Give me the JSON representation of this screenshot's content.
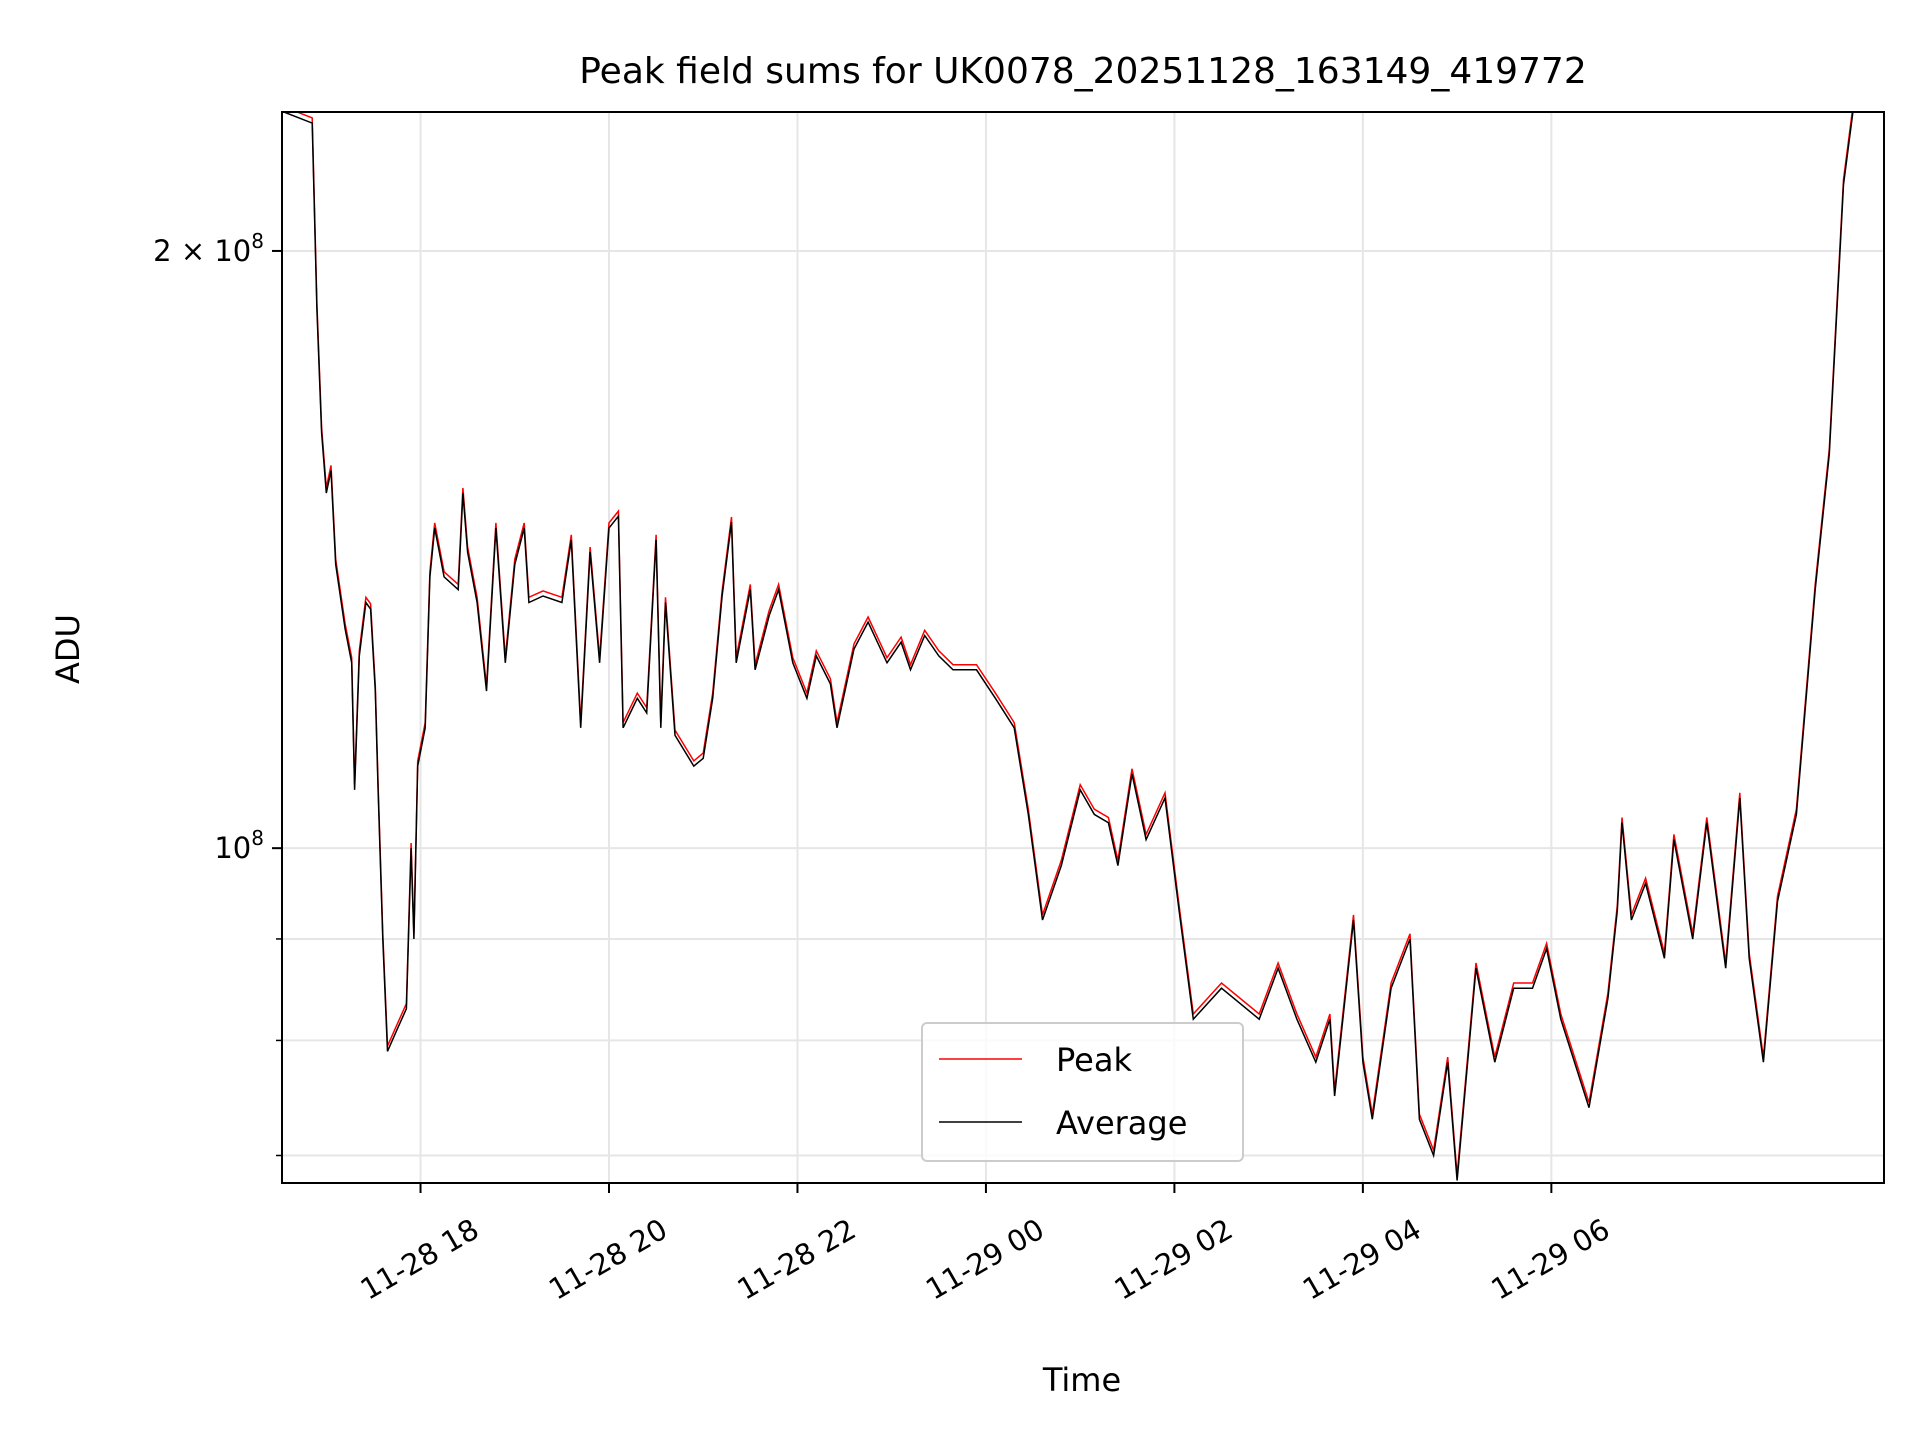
{
  "chart_data": {
    "type": "line",
    "title": "Peak field sums for UK0078_20251128_163149_419772",
    "xlabel": "Time",
    "ylabel": "ADU",
    "yscale": "log",
    "x_unit": "hours since 11-28 00:00",
    "xlim": [
      16.53,
      33.53
    ],
    "ylim": [
      67800000,
      235000000
    ],
    "grid": true,
    "legend_position": "lower-center",
    "x_ticks": [
      {
        "value": 18,
        "label": "11-28 18"
      },
      {
        "value": 20,
        "label": "11-28 20"
      },
      {
        "value": 22,
        "label": "11-28 22"
      },
      {
        "value": 24,
        "label": "11-29 00"
      },
      {
        "value": 26,
        "label": "11-29 02"
      },
      {
        "value": 28,
        "label": "11-29 04"
      },
      {
        "value": 30,
        "label": "11-29 06"
      }
    ],
    "y_major_ticks": [
      {
        "value": 200000000,
        "base": "2 × 10",
        "exp": "8"
      },
      {
        "value": 100000000,
        "base": "10",
        "exp": "8"
      }
    ],
    "y_minor_ticks": [
      70000000,
      80000000,
      90000000
    ],
    "series": [
      {
        "name": "Peak",
        "color": "#ff0000",
        "scale_vs_average": 1.006
      },
      {
        "name": "Average",
        "color": "#000000"
      }
    ],
    "average_points": [
      [
        16.55,
        235000000.0
      ],
      [
        16.85,
        232000000.0
      ],
      [
        16.9,
        187000000.0
      ],
      [
        16.95,
        162000000.0
      ],
      [
        17.0,
        151000000.0
      ],
      [
        17.05,
        155000000.0
      ],
      [
        17.1,
        139000000.0
      ],
      [
        17.2,
        129000000.0
      ],
      [
        17.27,
        124000000.0
      ],
      [
        17.3,
        107000000.0
      ],
      [
        17.35,
        125000000.0
      ],
      [
        17.42,
        133000000.0
      ],
      [
        17.47,
        132000000.0
      ],
      [
        17.52,
        120000000.0
      ],
      [
        17.55,
        107000000.0
      ],
      [
        17.6,
        90000000.0
      ],
      [
        17.65,
        79000000.0
      ],
      [
        17.75,
        81000000.0
      ],
      [
        17.85,
        83000000.0
      ],
      [
        17.9,
        100000000.0
      ],
      [
        17.93,
        90000000.0
      ],
      [
        17.97,
        110000000.0
      ],
      [
        18.05,
        115000000.0
      ],
      [
        18.1,
        137000000.0
      ],
      [
        18.15,
        145000000.0
      ],
      [
        18.25,
        137000000.0
      ],
      [
        18.4,
        135000000.0
      ],
      [
        18.45,
        151000000.0
      ],
      [
        18.5,
        141000000.0
      ],
      [
        18.6,
        133000000.0
      ],
      [
        18.7,
        120000000.0
      ],
      [
        18.8,
        145000000.0
      ],
      [
        18.9,
        124000000.0
      ],
      [
        19.0,
        139000000.0
      ],
      [
        19.1,
        145000000.0
      ],
      [
        19.15,
        133000000.0
      ],
      [
        19.3,
        134000000.0
      ],
      [
        19.5,
        133000000.0
      ],
      [
        19.6,
        143000000.0
      ],
      [
        19.7,
        115000000.0
      ],
      [
        19.8,
        141000000.0
      ],
      [
        19.9,
        124000000.0
      ],
      [
        20.0,
        145000000.0
      ],
      [
        20.1,
        147000000.0
      ],
      [
        20.15,
        115000000.0
      ],
      [
        20.3,
        119000000.0
      ],
      [
        20.4,
        117000000.0
      ],
      [
        20.5,
        143000000.0
      ],
      [
        20.55,
        115000000.0
      ],
      [
        20.6,
        133000000.0
      ],
      [
        20.7,
        114000000.0
      ],
      [
        20.9,
        110000000.0
      ],
      [
        21.0,
        111000000.0
      ],
      [
        21.1,
        119000000.0
      ],
      [
        21.2,
        134000000.0
      ],
      [
        21.3,
        146000000.0
      ],
      [
        21.35,
        124000000.0
      ],
      [
        21.5,
        135000000.0
      ],
      [
        21.55,
        123000000.0
      ],
      [
        21.7,
        131000000.0
      ],
      [
        21.8,
        135000000.0
      ],
      [
        21.95,
        124000000.0
      ],
      [
        22.1,
        119000000.0
      ],
      [
        22.2,
        125000000.0
      ],
      [
        22.35,
        121000000.0
      ],
      [
        22.42,
        115000000.0
      ],
      [
        22.6,
        126000000.0
      ],
      [
        22.75,
        130000000.0
      ],
      [
        22.95,
        124000000.0
      ],
      [
        23.1,
        127000000.0
      ],
      [
        23.2,
        123000000.0
      ],
      [
        23.35,
        128000000.0
      ],
      [
        23.5,
        125000000.0
      ],
      [
        23.65,
        123000000.0
      ],
      [
        23.9,
        123000000.0
      ],
      [
        24.1,
        119000000.0
      ],
      [
        24.3,
        115000000.0
      ],
      [
        24.45,
        104000000.0
      ],
      [
        24.6,
        92000000.0
      ],
      [
        24.8,
        98000000.0
      ],
      [
        25.0,
        107000000.0
      ],
      [
        25.15,
        104000000.0
      ],
      [
        25.3,
        103000000.0
      ],
      [
        25.4,
        98000000.0
      ],
      [
        25.55,
        109000000.0
      ],
      [
        25.7,
        101000000.0
      ],
      [
        25.9,
        106000000.0
      ],
      [
        26.05,
        93000000.0
      ],
      [
        26.2,
        82000000.0
      ],
      [
        26.5,
        85000000.0
      ],
      [
        26.9,
        82000000.0
      ],
      [
        27.1,
        87000000.0
      ],
      [
        27.3,
        82000000.0
      ],
      [
        27.5,
        78000000.0
      ],
      [
        27.65,
        82000000.0
      ],
      [
        27.7,
        75000000.0
      ],
      [
        27.9,
        92000000.0
      ],
      [
        28.0,
        78000000.0
      ],
      [
        28.1,
        73000000.0
      ],
      [
        28.3,
        85000000.0
      ],
      [
        28.5,
        90000000.0
      ],
      [
        28.6,
        73000000.0
      ],
      [
        28.75,
        70000000.0
      ],
      [
        28.9,
        78000000.0
      ],
      [
        29.0,
        68000000.0
      ],
      [
        29.2,
        87000000.0
      ],
      [
        29.4,
        78000000.0
      ],
      [
        29.6,
        85000000.0
      ],
      [
        29.8,
        85000000.0
      ],
      [
        29.95,
        89000000.0
      ],
      [
        30.1,
        82000000.0
      ],
      [
        30.4,
        74000000.0
      ],
      [
        30.6,
        84000000.0
      ],
      [
        30.7,
        93000000.0
      ],
      [
        30.75,
        103000000.0
      ],
      [
        30.85,
        92000000.0
      ],
      [
        31.0,
        96000000.0
      ],
      [
        31.2,
        88000000.0
      ],
      [
        31.3,
        101000000.0
      ],
      [
        31.5,
        90000000.0
      ],
      [
        31.65,
        103000000.0
      ],
      [
        31.85,
        87000000.0
      ],
      [
        32.0,
        106000000.0
      ],
      [
        32.1,
        88000000.0
      ],
      [
        32.25,
        78000000.0
      ],
      [
        32.4,
        94000000.0
      ],
      [
        32.6,
        104000000.0
      ],
      [
        32.8,
        135000000.0
      ],
      [
        32.95,
        158000000.0
      ],
      [
        33.1,
        216000000.0
      ],
      [
        33.2,
        235000000.0
      ],
      [
        33.5,
        235000000.0
      ]
    ]
  }
}
